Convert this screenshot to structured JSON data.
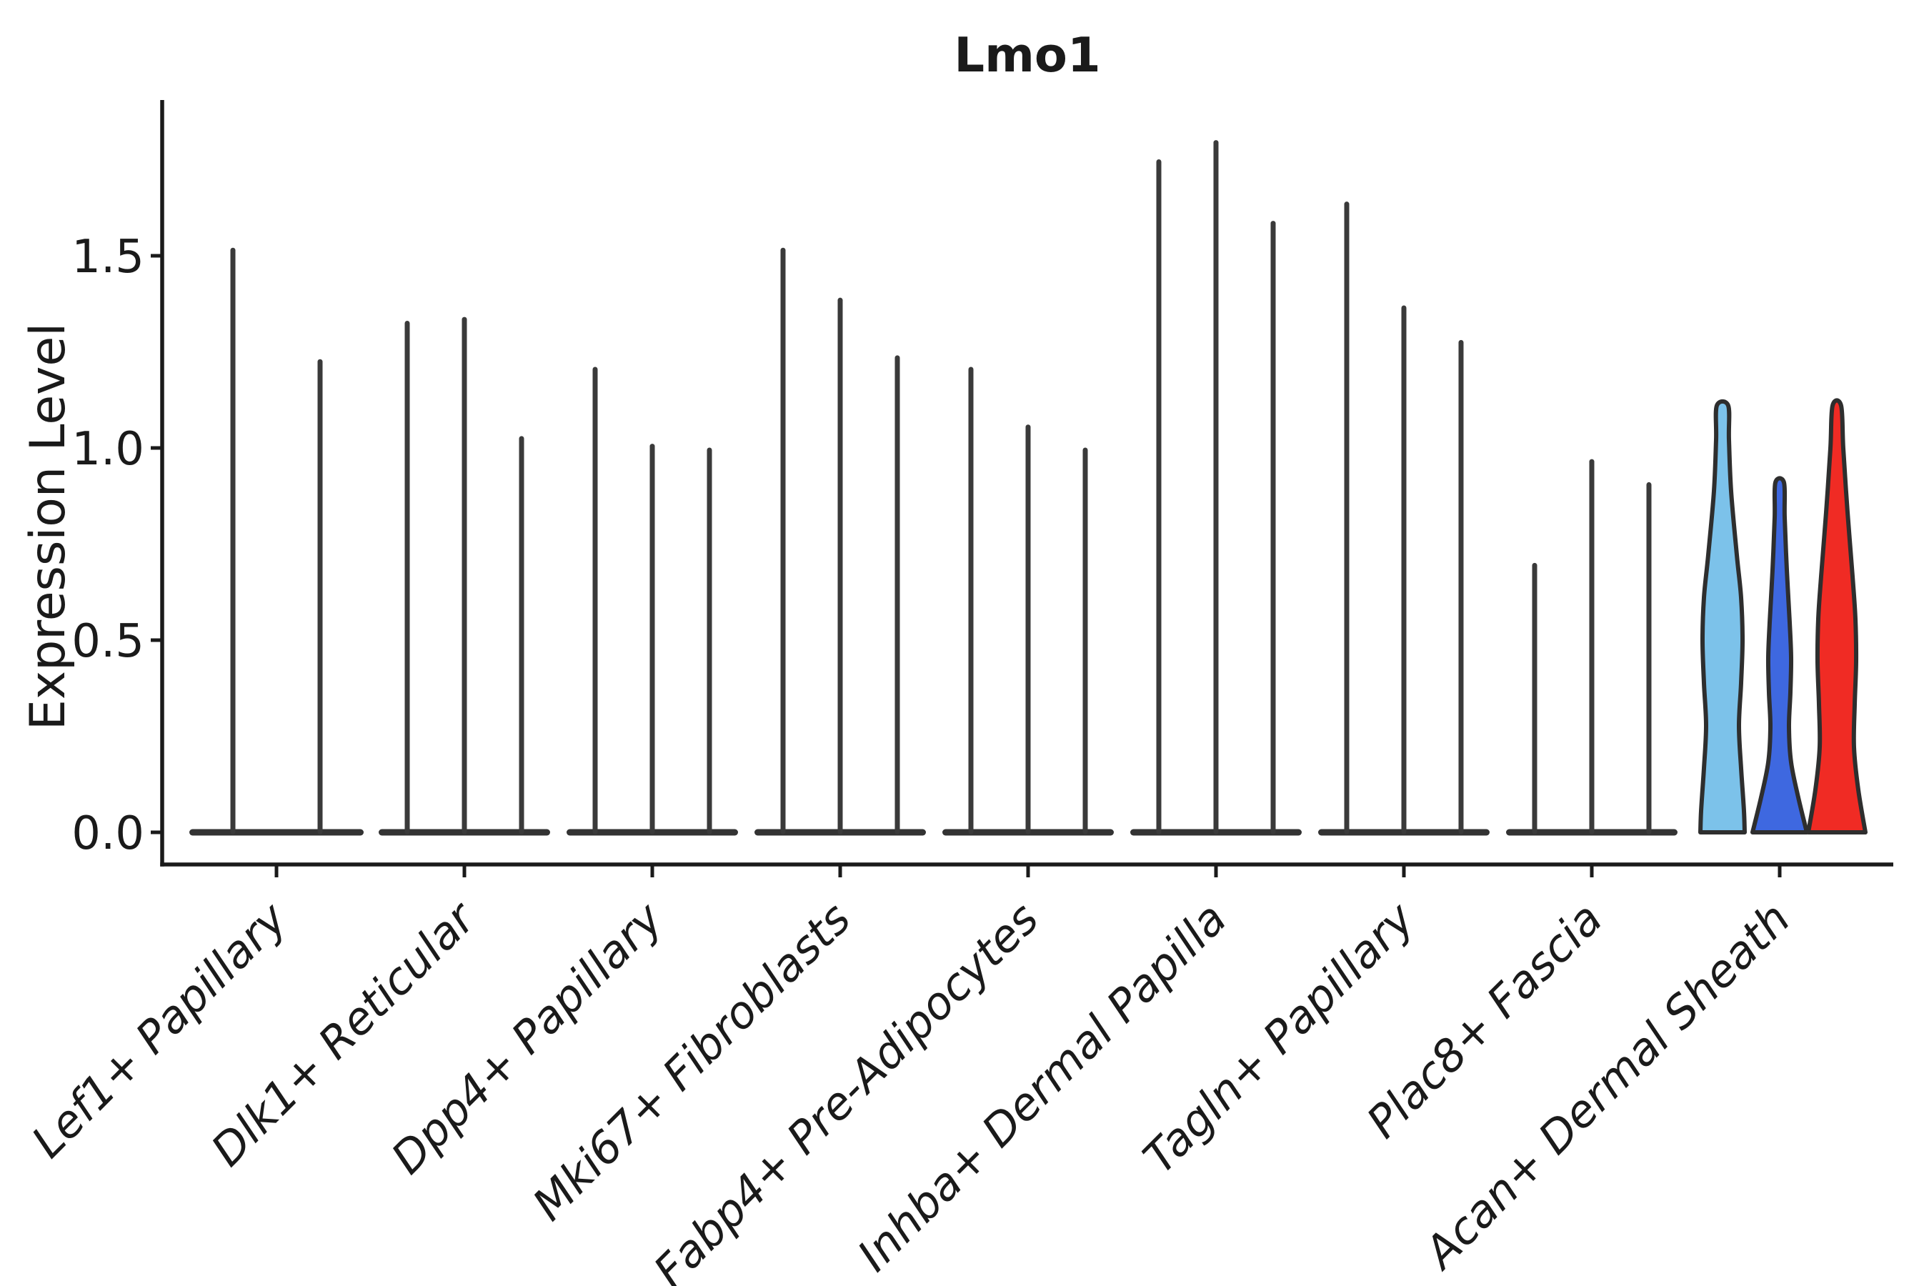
{
  "title": "Lmo1",
  "y_axis": {
    "label": "Expression Level",
    "tick_labels": [
      "0.0",
      "0.5",
      "1.0",
      "1.5"
    ],
    "tick_values": [
      0.0,
      0.5,
      1.0,
      1.5
    ]
  },
  "x_axis": {
    "tick_labels": [
      "Lef1+ Papillary",
      "Dlk1+ Reticular",
      "Dpp4+ Papillary",
      "Mki67+ Fibroblasts",
      "Fabp4+ Pre-Adipocytes",
      "Inhba+ Dermal Papilla",
      "Tagln+ Papillary",
      "Plac8+ Fascia",
      "Acan+ Dermal Sheath"
    ]
  },
  "chart_data": {
    "type": "violin",
    "title": "Lmo1",
    "xlabel": "",
    "ylabel": "Expression Level",
    "ylim": [
      -0.08,
      1.9
    ],
    "yticks": [
      0.0,
      0.5,
      1.0,
      1.5
    ],
    "grid": false,
    "legend_position": "none",
    "categories": [
      "Lef1+ Papillary",
      "Dlk1+ Reticular",
      "Dpp4+ Papillary",
      "Mki67+ Fibroblasts",
      "Fabp4+ Pre-Adipocytes",
      "Inhba+ Dermal Papilla",
      "Tagln+ Papillary",
      "Plac8+ Fascia",
      "Acan+ Dermal Sheath"
    ],
    "groups": [
      {
        "category": "Lef1+ Papillary",
        "violins": [
          {
            "max": 1.52,
            "style": "spike"
          },
          {
            "max": 1.23,
            "style": "spike"
          }
        ]
      },
      {
        "category": "Dlk1+ Reticular",
        "violins": [
          {
            "max": 1.33,
            "style": "spike"
          },
          {
            "max": 1.34,
            "style": "spike"
          },
          {
            "max": 1.03,
            "style": "spike"
          }
        ]
      },
      {
        "category": "Dpp4+ Papillary",
        "violins": [
          {
            "max": 1.21,
            "style": "spike"
          },
          {
            "max": 1.01,
            "style": "spike"
          },
          {
            "max": 1.0,
            "style": "spike"
          }
        ]
      },
      {
        "category": "Mki67+ Fibroblasts",
        "violins": [
          {
            "max": 1.52,
            "style": "spike"
          },
          {
            "max": 1.39,
            "style": "spike"
          },
          {
            "max": 1.24,
            "style": "spike"
          }
        ]
      },
      {
        "category": "Fabp4+ Pre-Adipocytes",
        "violins": [
          {
            "max": 1.21,
            "style": "spike"
          },
          {
            "max": 1.06,
            "style": "spike"
          },
          {
            "max": 1.0,
            "style": "spike"
          }
        ]
      },
      {
        "category": "Inhba+ Dermal Papilla",
        "violins": [
          {
            "max": 1.75,
            "style": "spike"
          },
          {
            "max": 1.8,
            "style": "spike"
          },
          {
            "max": 1.59,
            "style": "spike"
          }
        ]
      },
      {
        "category": "Tagln+ Papillary",
        "violins": [
          {
            "max": 1.64,
            "style": "spike"
          },
          {
            "max": 1.37,
            "style": "spike"
          },
          {
            "max": 1.28,
            "style": "spike"
          }
        ]
      },
      {
        "category": "Plac8+ Fascia",
        "violins": [
          {
            "max": 0.7,
            "style": "spike"
          },
          {
            "max": 0.97,
            "style": "spike"
          },
          {
            "max": 0.91,
            "style": "spike"
          }
        ]
      },
      {
        "category": "Acan+ Dermal Sheath",
        "violins": [
          {
            "max": 1.11,
            "style": "filled",
            "fill": "#7CC2EA",
            "profile": [
              [
                0,
                8
              ],
              [
                0.08,
                9
              ],
              [
                0.2,
                12
              ],
              [
                0.35,
                20
              ],
              [
                0.45,
                26
              ],
              [
                0.55,
                28
              ],
              [
                0.65,
                26
              ],
              [
                0.75,
                23
              ],
              [
                0.85,
                26
              ],
              [
                0.95,
                30
              ],
              [
                1,
                31
              ]
            ]
          },
          {
            "max": 0.91,
            "style": "filled",
            "fill": "#3E68E0",
            "profile": [
              [
                0,
                6
              ],
              [
                0.1,
                7
              ],
              [
                0.25,
                10
              ],
              [
                0.4,
                14
              ],
              [
                0.5,
                16
              ],
              [
                0.6,
                15
              ],
              [
                0.7,
                13
              ],
              [
                0.8,
                16
              ],
              [
                0.9,
                26
              ],
              [
                1,
                38
              ]
            ]
          },
          {
            "max": 1.11,
            "style": "filled",
            "fill": "#F02B24",
            "profile": [
              [
                0,
                6
              ],
              [
                0.1,
                9
              ],
              [
                0.25,
                15
              ],
              [
                0.4,
                22
              ],
              [
                0.5,
                26
              ],
              [
                0.6,
                27
              ],
              [
                0.7,
                25
              ],
              [
                0.8,
                24
              ],
              [
                0.9,
                30
              ],
              [
                1,
                40
              ]
            ]
          }
        ]
      }
    ],
    "colors": {
      "spike": "#3a3a3a",
      "baseline": "#333333",
      "violin_outline": "#2e2e2e",
      "axis": "#1a1a1a",
      "light_blue": "#7CC2EA",
      "royal_blue": "#3E68E0",
      "red": "#F02B24"
    }
  }
}
